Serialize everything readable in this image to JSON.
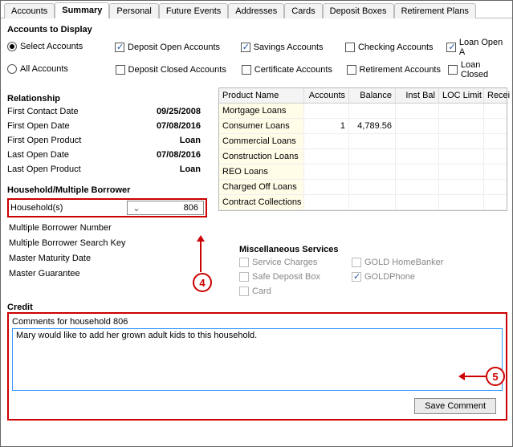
{
  "tabs": [
    "Accounts",
    "Summary",
    "Personal",
    "Future Events",
    "Addresses",
    "Cards",
    "Deposit Boxes",
    "Retirement Plans"
  ],
  "active_tab_index": 1,
  "accounts_display": {
    "title": "Accounts to Display",
    "radios": {
      "select": {
        "label": "Select Accounts",
        "checked": true
      },
      "all": {
        "label": "All Accounts",
        "checked": false
      }
    },
    "checks_row1": [
      {
        "label": "Deposit Open Accounts",
        "checked": true
      },
      {
        "label": "Savings Accounts",
        "checked": true
      },
      {
        "label": "Checking Accounts",
        "checked": false
      },
      {
        "label": "Loan Open A",
        "checked": true
      }
    ],
    "checks_row2": [
      {
        "label": "Deposit Closed Accounts",
        "checked": false
      },
      {
        "label": "Certificate Accounts",
        "checked": false
      },
      {
        "label": "Retirement Accounts",
        "checked": false
      },
      {
        "label": "Loan Closed",
        "checked": false
      }
    ]
  },
  "relationship": {
    "title": "Relationship",
    "rows": [
      {
        "label": "First Contact Date",
        "value": "09/25/2008"
      },
      {
        "label": "First Open Date",
        "value": "07/08/2016"
      },
      {
        "label": "First Open Product",
        "value": "Loan"
      },
      {
        "label": "Last Open Date",
        "value": "07/08/2016"
      },
      {
        "label": "Last Open Product",
        "value": "Loan"
      }
    ]
  },
  "household": {
    "title": "Household/Multiple Borrower",
    "field_label": "Household(s)",
    "value": "806",
    "items": [
      "Multiple Borrower Number",
      "Multiple Borrower Search Key",
      "Master Maturity Date",
      "Master Guarantee"
    ]
  },
  "product_table": {
    "columns": [
      "Product Name",
      "Accounts",
      "Balance",
      "Inst Bal",
      "LOC Limit",
      "Recei"
    ],
    "rows": [
      {
        "name": "Mortgage Loans",
        "accounts": "",
        "balance": "",
        "inst": "",
        "loc": "",
        "rec": ""
      },
      {
        "name": "Consumer Loans",
        "accounts": "1",
        "balance": "4,789.56",
        "inst": "",
        "loc": "",
        "rec": ""
      },
      {
        "name": "Commercial Loans",
        "accounts": "",
        "balance": "",
        "inst": "",
        "loc": "",
        "rec": ""
      },
      {
        "name": "Construction Loans",
        "accounts": "",
        "balance": "",
        "inst": "",
        "loc": "",
        "rec": ""
      },
      {
        "name": "REO Loans",
        "accounts": "",
        "balance": "",
        "inst": "",
        "loc": "",
        "rec": ""
      },
      {
        "name": "Charged Off Loans",
        "accounts": "",
        "balance": "",
        "inst": "",
        "loc": "",
        "rec": ""
      },
      {
        "name": "Contract Collections",
        "accounts": "",
        "balance": "",
        "inst": "",
        "loc": "",
        "rec": ""
      }
    ]
  },
  "misc": {
    "title": "Miscellaneous Services",
    "items": [
      {
        "label": "Service Charges",
        "checked": false,
        "disabled": true
      },
      {
        "label": "GOLD HomeBanker",
        "checked": false,
        "disabled": true
      },
      {
        "label": "Safe Deposit Box",
        "checked": false,
        "disabled": true
      },
      {
        "label": "GOLDPhone",
        "checked": true,
        "disabled": true
      },
      {
        "label": "Card",
        "checked": false,
        "disabled": true
      }
    ]
  },
  "credit": {
    "title": "Credit",
    "comments_label": "Comments for household 806",
    "comments_text": "Mary would like to add her grown adult kids to this household.",
    "save_label": "Save Comment"
  },
  "markers": {
    "m4": "4",
    "m5": "5"
  }
}
